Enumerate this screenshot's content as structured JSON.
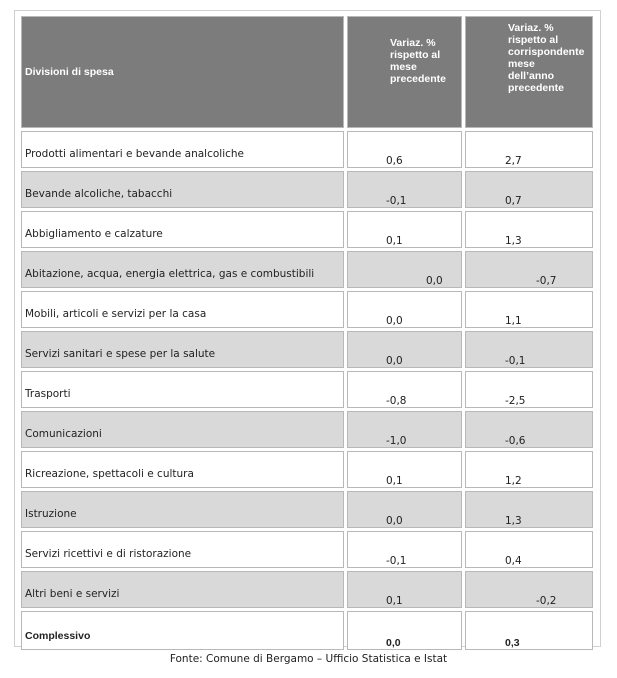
{
  "header": {
    "label": "Divisioni di spesa",
    "col1": [
      "Variaz. %",
      "rispetto al",
      "mese",
      "precedente"
    ],
    "col2": [
      "Variaz. %",
      "rispetto al",
      "corrispondente",
      "mese",
      "dell’anno",
      "precedente"
    ]
  },
  "rows": [
    {
      "label": "Prodotti alimentari e bevande analcoliche",
      "v1": "0,6",
      "v2": "2,7"
    },
    {
      "label": "Bevande alcoliche, tabacchi",
      "v1": "-0,1",
      "v2": "0,7"
    },
    {
      "label": "Abbigliamento e calzature",
      "v1": "0,1",
      "v2": "1,3"
    },
    {
      "label": "Abitazione, acqua, energia elettrica, gas e combustibili",
      "v1": "0,0",
      "v2": "-0,7"
    },
    {
      "label": "Mobili, articoli e servizi per la casa",
      "v1": "0,0",
      "v2": "1,1"
    },
    {
      "label": "Servizi sanitari e spese per la salute",
      "v1": "0,0",
      "v2": "-0,1"
    },
    {
      "label": "Trasporti",
      "v1": "-0,8",
      "v2": "-2,5"
    },
    {
      "label": "Comunicazioni",
      "v1": "-1,0",
      "v2": "-0,6"
    },
    {
      "label": "Ricreazione, spettacoli e cultura",
      "v1": "0,1",
      "v2": "1,2"
    },
    {
      "label": "Istruzione",
      "v1": "0,0",
      "v2": "1,3"
    },
    {
      "label": "Servizi ricettivi e di ristorazione",
      "v1": "-0,1",
      "v2": "0,4"
    },
    {
      "label": "Altri beni e servizi",
      "v1": "0,1",
      "v2": "-0,2"
    }
  ],
  "total": {
    "label": "Complessivo",
    "v1": "0,0",
    "v2": "0,3"
  },
  "footer": "Fonte: Comune di Bergamo – Ufficio Statistica e Istat",
  "colors": {
    "header_bg": "#7c7c7c",
    "stripe_bg": "#d9d9d9",
    "header_text": "#ffffff"
  }
}
